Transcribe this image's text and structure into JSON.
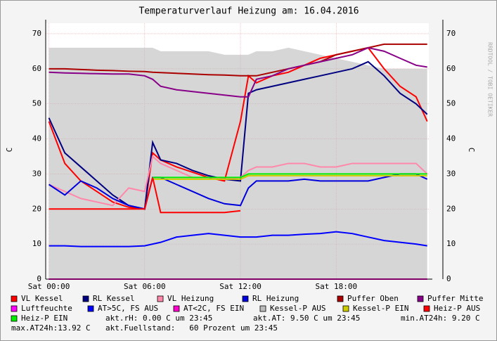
{
  "chart_data": {
    "type": "line",
    "title": "Temperaturverlauf Heizung am: 16.04.2016",
    "y_label": "C",
    "y2_label": "C",
    "watermark": "RRDTOOL / TOBI OETIKER",
    "x": [
      0,
      1,
      2,
      3,
      4,
      5,
      6,
      6.5,
      7,
      8,
      9,
      10,
      11,
      12,
      12.5,
      13,
      14,
      15,
      16,
      17,
      18,
      19,
      20,
      21,
      22,
      23,
      23.7
    ],
    "xlim": [
      -0.2,
      23.8
    ],
    "xticks": [
      {
        "value": 0,
        "label": "Sat 00:00"
      },
      {
        "value": 6,
        "label": "Sat 06:00"
      },
      {
        "value": 12,
        "label": "Sat 12:00"
      },
      {
        "value": 18,
        "label": "Sat 18:00"
      }
    ],
    "ylim": [
      0,
      73
    ],
    "yticks": [
      0,
      10,
      20,
      30,
      40,
      50,
      60,
      70
    ],
    "grid": true,
    "series": [
      {
        "name": "VL Kessel",
        "color": "#ff0000",
        "values": [
          45,
          33,
          28,
          25,
          22,
          20.5,
          20,
          36,
          34,
          32,
          30.5,
          29,
          28,
          45,
          58,
          56,
          58,
          59,
          61,
          63,
          64,
          65,
          66,
          60,
          55,
          52,
          45
        ]
      },
      {
        "name": "RL Kessel",
        "color": "#000080",
        "values": [
          46,
          36,
          32,
          28,
          24,
          21,
          20,
          39,
          34,
          33,
          31,
          29.5,
          28.5,
          28,
          53,
          54,
          55,
          56,
          57,
          58,
          59,
          60,
          62,
          58,
          53,
          50,
          47
        ]
      },
      {
        "name": "VL Heizung",
        "color": "#ff88aa",
        "values": [
          27,
          25,
          23,
          22,
          21,
          26,
          25,
          35,
          33,
          31,
          29,
          29,
          28.5,
          29,
          31,
          32,
          32,
          33,
          33,
          32,
          32,
          33,
          33,
          33,
          33,
          33,
          30
        ]
      },
      {
        "name": "RL Heizung",
        "color": "#0000dd",
        "values": [
          27,
          24,
          28,
          26,
          23,
          21,
          20,
          29,
          29,
          27,
          25,
          23,
          21.5,
          21,
          26,
          28,
          28,
          28,
          28.5,
          28,
          28,
          28,
          28,
          29,
          30,
          30,
          28.5
        ]
      },
      {
        "name": "Puffer Oben",
        "color": "#aa0000",
        "values": [
          60,
          60,
          59.8,
          59.6,
          59.5,
          59.3,
          59.2,
          59,
          58.9,
          58.7,
          58.5,
          58.3,
          58.2,
          58,
          58,
          58,
          59,
          60,
          61,
          62,
          64,
          65,
          66,
          67,
          67,
          67,
          67
        ]
      },
      {
        "name": "Puffer Mitte",
        "color": "#880088",
        "values": [
          59,
          58.8,
          58.7,
          58.6,
          58.5,
          58.5,
          58,
          57,
          55,
          54,
          53.5,
          53,
          52.5,
          52,
          52,
          57,
          58,
          60,
          61,
          62,
          63,
          64,
          66,
          65,
          63,
          61,
          60.5
        ]
      },
      {
        "name": "Luftfeuchte",
        "color": "#ff00ff",
        "values": [
          0,
          0,
          0,
          0,
          0,
          0,
          0,
          0,
          0,
          0,
          0,
          0,
          0,
          0,
          0,
          0,
          0,
          0,
          0,
          0,
          0,
          0,
          0,
          0,
          0,
          0,
          0
        ]
      },
      {
        "name": "AT>5C, FS AUS",
        "color": "#0000ff",
        "values": [
          9.5,
          9.5,
          9.3,
          9.3,
          9.3,
          9.3,
          9.5,
          10,
          10.5,
          12,
          12.5,
          13,
          12.5,
          12,
          12,
          12,
          12.5,
          12.5,
          12.8,
          13,
          13.5,
          13,
          12,
          11,
          10.5,
          10,
          9.5
        ]
      },
      {
        "name": "AT<2C, FS EIN",
        "color": "#ff00cc",
        "values": [
          0,
          0,
          0,
          0,
          0,
          0,
          0,
          0,
          0,
          0,
          0,
          0,
          0,
          0,
          0,
          0,
          0,
          0,
          0,
          0,
          0,
          0,
          0,
          0,
          0,
          0,
          0
        ]
      },
      {
        "name": "Kessel-P AUS",
        "color": "#bbbbbb",
        "type": "area",
        "values": [
          66,
          66,
          66,
          66,
          66,
          66,
          66,
          66,
          65,
          65,
          65,
          65,
          64,
          64,
          64,
          65,
          65,
          66,
          65,
          64,
          63,
          62,
          61,
          60,
          60,
          60,
          60
        ]
      },
      {
        "name": "Kessel-P EIN",
        "color": "#cccc00",
        "values": [
          null,
          null,
          null,
          null,
          null,
          null,
          null,
          28.5,
          28.5,
          28.5,
          28.5,
          28.5,
          28.5,
          28.5,
          29.5,
          29.5,
          29.5,
          29.5,
          29.5,
          29.5,
          29.5,
          29.5,
          29.5,
          29.5,
          29.5,
          29.5,
          29.5
        ]
      },
      {
        "name": "Heiz-P AUS",
        "color": "#ff0000",
        "values": [
          20,
          20,
          20,
          20,
          20,
          20,
          20,
          29,
          19,
          19,
          19,
          19,
          19,
          19.5,
          null,
          null,
          null,
          null,
          null,
          null,
          null,
          null,
          null,
          null,
          null,
          null,
          21
        ]
      },
      {
        "name": "Heiz-P EIN",
        "color": "#00ee00",
        "values": [
          null,
          null,
          null,
          null,
          null,
          null,
          null,
          29,
          29,
          29,
          29,
          29,
          29,
          29,
          30,
          30,
          30,
          30,
          30,
          30,
          30,
          30,
          30,
          30,
          30,
          30,
          30
        ]
      }
    ],
    "legend_notes": [
      "akt.rH: 0.00 C um 23:45",
      "akt.AT: 9.50 C um 23:45",
      "min.AT24h: 9.20 C",
      "max.AT24h:13.92 C",
      "akt.Fuellstand:   60 Prozent um 23:45"
    ]
  }
}
